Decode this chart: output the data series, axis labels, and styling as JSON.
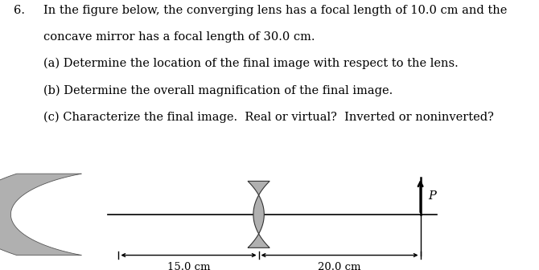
{
  "bg_color": "#ffffff",
  "text_color": "#000000",
  "mirror_color": "#b0b0b0",
  "lens_color": "#b0b0b0",
  "label_15": "15.0 cm",
  "label_20": "20.0 cm",
  "label_P": "P",
  "text_lines": [
    "In the figure below, the converging lens has a focal length of 10.0 cm and the",
    "concave mirror has a focal length of 30.0 cm.",
    "(a) Determine the location of the final image with respect to the lens.",
    "(b) Determine the overall magnification of the final image.",
    "(c) Characterize the final image.  Real or virtual?  Inverted or noninverted?"
  ],
  "font_size_text": 10.5
}
